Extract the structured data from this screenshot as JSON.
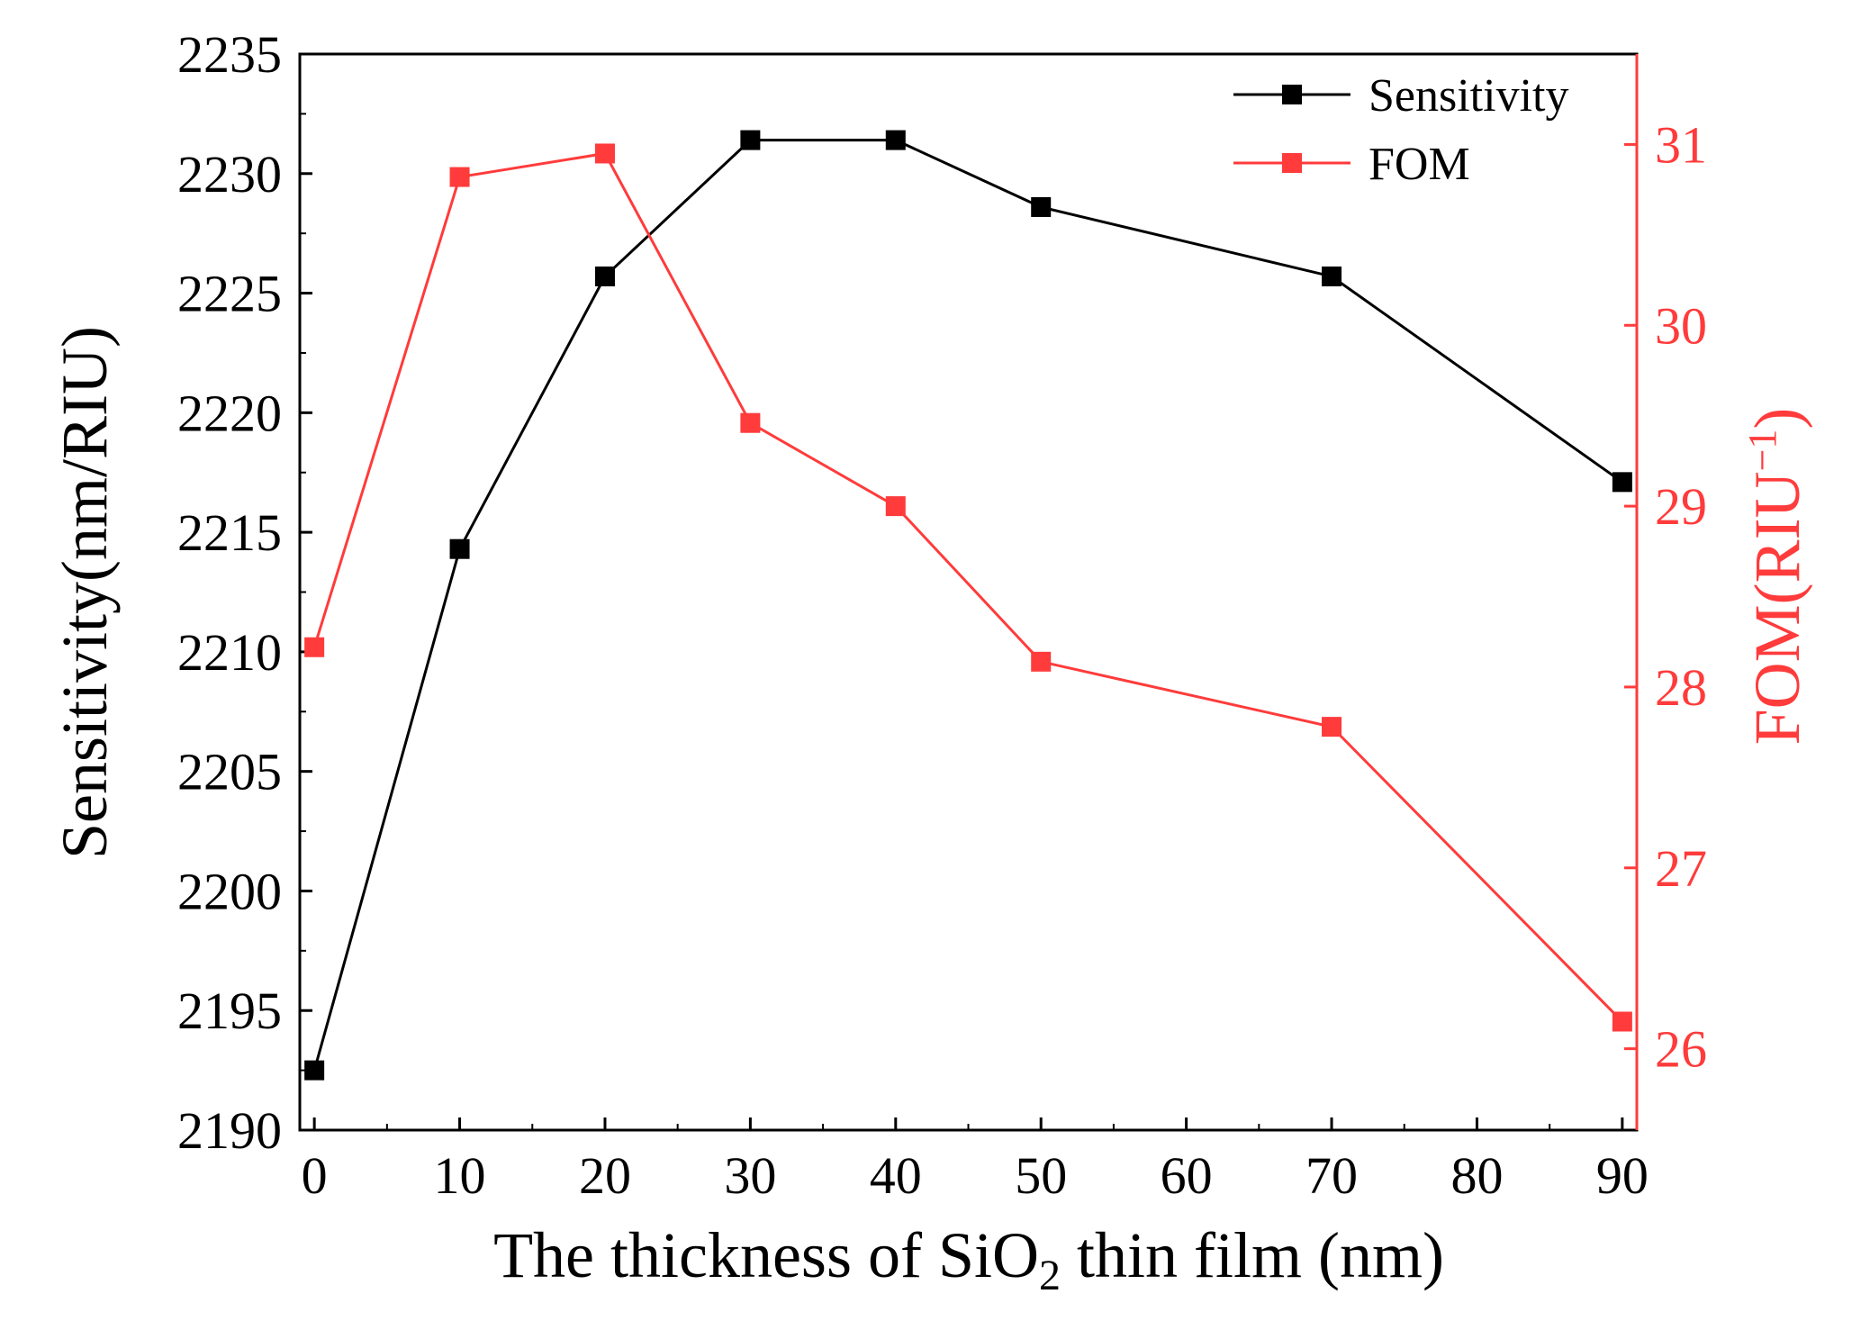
{
  "chart_data": {
    "type": "line",
    "title": "",
    "xlabel": {
      "main": "The thickness of SiO",
      "sub": "2",
      "tail": " thin film (nm)"
    },
    "ylabel": "Sensitivity(nm/RIU)",
    "y2label": {
      "main": "FOM(RIU",
      "sup": "−1",
      "tail": ")"
    },
    "xlim": [
      -1,
      91
    ],
    "ylim": [
      2190,
      2235
    ],
    "y2lim": [
      25.55,
      31.5
    ],
    "xticks": [
      0,
      10,
      20,
      30,
      40,
      50,
      60,
      70,
      80,
      90
    ],
    "yticks": [
      2190,
      2195,
      2200,
      2205,
      2210,
      2215,
      2220,
      2225,
      2230,
      2235
    ],
    "y2ticks": [
      26,
      27,
      28,
      29,
      30,
      31
    ],
    "x": [
      0,
      10,
      20,
      30,
      40,
      50,
      70,
      90
    ],
    "series": [
      {
        "name": "Sensitivity",
        "axis": "left",
        "color": "#000000",
        "values": [
          2192.5,
          2214.3,
          2225.7,
          2231.4,
          2231.4,
          2228.6,
          2225.7,
          2217.1
        ]
      },
      {
        "name": "FOM",
        "axis": "right",
        "color": "#ff3b3b",
        "values": [
          28.22,
          30.82,
          30.95,
          29.46,
          29.0,
          28.14,
          27.78,
          26.15
        ]
      }
    ],
    "legend_position": "top-right",
    "right_axis_color": "#ff3b3b"
  }
}
